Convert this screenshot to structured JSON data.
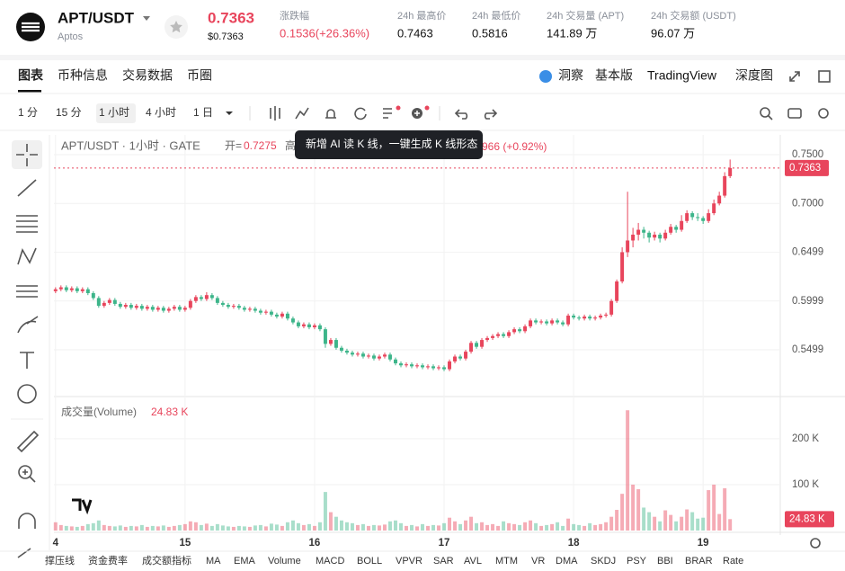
{
  "header": {
    "pair": "APT/USDT",
    "name": "Aptos",
    "price": "0.7363",
    "price_usd": "$0.7363",
    "stats": [
      {
        "label": "涨跌幅",
        "value": "0.1536(+26.36%)"
      },
      {
        "label": "24h 最高价",
        "value": "0.7463"
      },
      {
        "label": "24h 最低价",
        "value": "0.5816"
      },
      {
        "label": "24h 交易量 (APT)",
        "value": "141.89 万"
      },
      {
        "label": "24h 交易额 (USDT)",
        "value": "96.07 万"
      }
    ]
  },
  "tabs": [
    "图表",
    "币种信息",
    "交易数据",
    "币圈"
  ],
  "right_tabs": [
    "洞察",
    "基本版",
    "TradingView",
    "深度图"
  ],
  "intervals": [
    "1 分",
    "15 分",
    "1 小时",
    "4 小时",
    "1 日"
  ],
  "tooltip": "新增 AI 读 K 线，一键生成 K 线形态",
  "indicators": [
    "撑压线",
    "资金费率",
    "成交额指标",
    "MA",
    "EMA",
    "Volume",
    "MACD",
    "BOLL",
    "VPVR",
    "SAR",
    "AVL",
    "MTM",
    "VR",
    "DMA",
    "SKDJ",
    "PSY",
    "BBI",
    "BRAR",
    "Rate"
  ],
  "chart": {
    "type": "candlestick",
    "legend": {
      "title": "APT/USDT · 1小时 · GATE",
      "open_label": "开=",
      "open_value": "0.7275",
      "high_label": "高",
      "change": "966 (+0.92%)"
    },
    "up_color": "#e8455c",
    "down_color": "#3db58a",
    "xlim": [
      -0.3,
      134.3
    ],
    "xticks": [
      {
        "value": 0,
        "label": "4"
      },
      {
        "value": 24,
        "label": "15"
      },
      {
        "value": 48,
        "label": "16"
      },
      {
        "value": 72,
        "label": "17"
      },
      {
        "value": 96,
        "label": "18"
      },
      {
        "value": 120,
        "label": "19"
      }
    ],
    "ylim": [
      0.5029,
      0.7703
    ],
    "yticks": [
      0.5499,
      0.5999,
      0.6499,
      {
        "value": 0.7,
        "label": "0.7000"
      },
      {
        "value": 0.75,
        "label": "0.7500"
      }
    ],
    "last_price": 0.7363,
    "candles": [
      [
        0.61,
        0.614,
        0.608,
        0.612
      ],
      [
        0.612,
        0.616,
        0.61,
        0.614
      ],
      [
        0.614,
        0.616,
        0.609,
        0.611
      ],
      [
        0.611,
        0.615,
        0.609,
        0.613
      ],
      [
        0.613,
        0.615,
        0.608,
        0.61
      ],
      [
        0.61,
        0.614,
        0.608,
        0.612
      ],
      [
        0.612,
        0.614,
        0.606,
        0.608
      ],
      [
        0.608,
        0.61,
        0.601,
        0.603
      ],
      [
        0.603,
        0.605,
        0.593,
        0.595
      ],
      [
        0.595,
        0.6,
        0.593,
        0.598
      ],
      [
        0.598,
        0.603,
        0.596,
        0.601
      ],
      [
        0.601,
        0.603,
        0.595,
        0.597
      ],
      [
        0.597,
        0.599,
        0.592,
        0.594
      ],
      [
        0.594,
        0.598,
        0.592,
        0.596
      ],
      [
        0.596,
        0.598,
        0.591,
        0.593
      ],
      [
        0.593,
        0.597,
        0.591,
        0.595
      ],
      [
        0.595,
        0.597,
        0.59,
        0.592
      ],
      [
        0.592,
        0.596,
        0.59,
        0.594
      ],
      [
        0.594,
        0.596,
        0.589,
        0.591
      ],
      [
        0.591,
        0.595,
        0.589,
        0.593
      ],
      [
        0.593,
        0.595,
        0.588,
        0.59
      ],
      [
        0.59,
        0.594,
        0.588,
        0.592
      ],
      [
        0.592,
        0.596,
        0.59,
        0.594
      ],
      [
        0.594,
        0.596,
        0.589,
        0.591
      ],
      [
        0.591,
        0.595,
        0.589,
        0.593
      ],
      [
        0.593,
        0.602,
        0.591,
        0.6
      ],
      [
        0.6,
        0.606,
        0.598,
        0.604
      ],
      [
        0.604,
        0.606,
        0.6,
        0.602
      ],
      [
        0.602,
        0.609,
        0.6,
        0.606
      ],
      [
        0.606,
        0.608,
        0.601,
        0.603
      ],
      [
        0.603,
        0.605,
        0.596,
        0.598
      ],
      [
        0.598,
        0.6,
        0.594,
        0.596
      ],
      [
        0.596,
        0.598,
        0.592,
        0.594
      ],
      [
        0.594,
        0.597,
        0.592,
        0.595
      ],
      [
        0.595,
        0.597,
        0.591,
        0.593
      ],
      [
        0.593,
        0.595,
        0.589,
        0.591
      ],
      [
        0.591,
        0.594,
        0.589,
        0.592
      ],
      [
        0.592,
        0.594,
        0.588,
        0.59
      ],
      [
        0.59,
        0.592,
        0.586,
        0.588
      ],
      [
        0.588,
        0.591,
        0.586,
        0.589
      ],
      [
        0.589,
        0.591,
        0.584,
        0.586
      ],
      [
        0.586,
        0.588,
        0.582,
        0.584
      ],
      [
        0.584,
        0.589,
        0.582,
        0.587
      ],
      [
        0.587,
        0.589,
        0.58,
        0.582
      ],
      [
        0.582,
        0.584,
        0.576,
        0.578
      ],
      [
        0.578,
        0.58,
        0.572,
        0.574
      ],
      [
        0.574,
        0.578,
        0.572,
        0.576
      ],
      [
        0.576,
        0.578,
        0.571,
        0.573
      ],
      [
        0.573,
        0.577,
        0.571,
        0.575
      ],
      [
        0.575,
        0.577,
        0.569,
        0.571
      ],
      [
        0.571,
        0.573,
        0.552,
        0.556
      ],
      [
        0.556,
        0.562,
        0.554,
        0.56
      ],
      [
        0.56,
        0.562,
        0.55,
        0.552
      ],
      [
        0.552,
        0.554,
        0.547,
        0.549
      ],
      [
        0.549,
        0.551,
        0.545,
        0.547
      ],
      [
        0.547,
        0.549,
        0.543,
        0.545
      ],
      [
        0.545,
        0.548,
        0.543,
        0.546
      ],
      [
        0.546,
        0.548,
        0.541,
        0.543
      ],
      [
        0.543,
        0.546,
        0.541,
        0.544
      ],
      [
        0.544,
        0.546,
        0.539,
        0.541
      ],
      [
        0.541,
        0.545,
        0.539,
        0.543
      ],
      [
        0.543,
        0.547,
        0.541,
        0.545
      ],
      [
        0.545,
        0.547,
        0.538,
        0.54
      ],
      [
        0.54,
        0.542,
        0.534,
        0.536
      ],
      [
        0.536,
        0.538,
        0.532,
        0.534
      ],
      [
        0.534,
        0.537,
        0.532,
        0.535
      ],
      [
        0.535,
        0.537,
        0.531,
        0.533
      ],
      [
        0.533,
        0.536,
        0.531,
        0.534
      ],
      [
        0.534,
        0.536,
        0.53,
        0.532
      ],
      [
        0.532,
        0.535,
        0.53,
        0.533
      ],
      [
        0.533,
        0.535,
        0.529,
        0.531
      ],
      [
        0.531,
        0.534,
        0.529,
        0.532
      ],
      [
        0.532,
        0.534,
        0.528,
        0.53
      ],
      [
        0.53,
        0.54,
        0.528,
        0.538
      ],
      [
        0.538,
        0.545,
        0.536,
        0.543
      ],
      [
        0.543,
        0.545,
        0.539,
        0.541
      ],
      [
        0.541,
        0.55,
        0.539,
        0.548
      ],
      [
        0.548,
        0.559,
        0.546,
        0.557
      ],
      [
        0.557,
        0.559,
        0.551,
        0.553
      ],
      [
        0.553,
        0.562,
        0.551,
        0.56
      ],
      [
        0.56,
        0.564,
        0.558,
        0.562
      ],
      [
        0.562,
        0.566,
        0.56,
        0.564
      ],
      [
        0.564,
        0.568,
        0.562,
        0.566
      ],
      [
        0.566,
        0.568,
        0.562,
        0.564
      ],
      [
        0.564,
        0.57,
        0.562,
        0.568
      ],
      [
        0.568,
        0.573,
        0.566,
        0.571
      ],
      [
        0.571,
        0.573,
        0.567,
        0.569
      ],
      [
        0.569,
        0.576,
        0.567,
        0.574
      ],
      [
        0.574,
        0.582,
        0.572,
        0.58
      ],
      [
        0.58,
        0.582,
        0.576,
        0.578
      ],
      [
        0.578,
        0.581,
        0.576,
        0.579
      ],
      [
        0.579,
        0.581,
        0.575,
        0.577
      ],
      [
        0.577,
        0.582,
        0.575,
        0.58
      ],
      [
        0.58,
        0.582,
        0.576,
        0.578
      ],
      [
        0.578,
        0.58,
        0.574,
        0.576
      ],
      [
        0.576,
        0.587,
        0.574,
        0.585
      ],
      [
        0.585,
        0.587,
        0.581,
        0.583
      ],
      [
        0.583,
        0.585,
        0.58,
        0.582
      ],
      [
        0.582,
        0.586,
        0.58,
        0.584
      ],
      [
        0.584,
        0.586,
        0.58,
        0.582
      ],
      [
        0.582,
        0.585,
        0.58,
        0.583
      ],
      [
        0.583,
        0.587,
        0.581,
        0.585
      ],
      [
        0.585,
        0.588,
        0.583,
        0.586
      ],
      [
        0.586,
        0.602,
        0.584,
        0.6
      ],
      [
        0.6,
        0.622,
        0.598,
        0.62
      ],
      [
        0.62,
        0.655,
        0.618,
        0.65
      ],
      [
        0.65,
        0.712,
        0.645,
        0.662
      ],
      [
        0.662,
        0.675,
        0.655,
        0.668
      ],
      [
        0.668,
        0.68,
        0.662,
        0.673
      ],
      [
        0.673,
        0.676,
        0.664,
        0.67
      ],
      [
        0.67,
        0.672,
        0.66,
        0.665
      ],
      [
        0.665,
        0.671,
        0.662,
        0.668
      ],
      [
        0.668,
        0.67,
        0.66,
        0.664
      ],
      [
        0.664,
        0.673,
        0.662,
        0.67
      ],
      [
        0.67,
        0.679,
        0.668,
        0.676
      ],
      [
        0.676,
        0.678,
        0.67,
        0.673
      ],
      [
        0.673,
        0.688,
        0.671,
        0.682
      ],
      [
        0.682,
        0.693,
        0.68,
        0.69
      ],
      [
        0.69,
        0.692,
        0.683,
        0.686
      ],
      [
        0.686,
        0.69,
        0.682,
        0.685
      ],
      [
        0.685,
        0.687,
        0.679,
        0.682
      ],
      [
        0.682,
        0.694,
        0.68,
        0.69
      ],
      [
        0.69,
        0.704,
        0.688,
        0.7
      ],
      [
        0.7,
        0.712,
        0.698,
        0.708
      ],
      [
        0.708,
        0.732,
        0.706,
        0.728
      ],
      [
        0.728,
        0.745,
        0.726,
        0.7363
      ]
    ],
    "volume_title": "成交量(Volume)",
    "volume_current": "24.83 K",
    "volume_axis_label": "24.83 K",
    "vlim": [
      0,
      284000
    ],
    "vticks": [
      {
        "value": 100000,
        "label": "100 K"
      },
      {
        "value": 200000,
        "label": "200 K"
      }
    ],
    "volumes": [
      18000,
      12000,
      10000,
      9000,
      8000,
      10000,
      14000,
      16000,
      22000,
      12000,
      10000,
      9000,
      11000,
      8000,
      10000,
      9000,
      12000,
      8000,
      10000,
      9000,
      11000,
      8000,
      10000,
      12000,
      14000,
      20000,
      18000,
      12000,
      15000,
      10000,
      14000,
      11000,
      9000,
      8000,
      10000,
      9000,
      8000,
      11000,
      12000,
      9000,
      15000,
      13000,
      10000,
      18000,
      22000,
      16000,
      12000,
      14000,
      10000,
      18000,
      84000,
      40000,
      30000,
      22000,
      18000,
      16000,
      12000,
      14000,
      10000,
      12000,
      11000,
      13000,
      20000,
      22000,
      16000,
      10000,
      12000,
      9000,
      14000,
      10000,
      12000,
      11000,
      16000,
      28000,
      20000,
      14000,
      22000,
      30000,
      16000,
      18000,
      12000,
      14000,
      10000,
      20000,
      16000,
      14000,
      12000,
      18000,
      22000,
      16000,
      10000,
      12000,
      14000,
      18000,
      10000,
      26000,
      14000,
      12000,
      10000,
      16000,
      12000,
      14000,
      18000,
      30000,
      45000,
      80000,
      262000,
      100000,
      90000,
      50000,
      40000,
      30000,
      20000,
      44000,
      34000,
      20000,
      30000,
      46000,
      40000,
      26000,
      28000,
      88000,
      100000,
      36000,
      92000,
      24830
    ]
  }
}
